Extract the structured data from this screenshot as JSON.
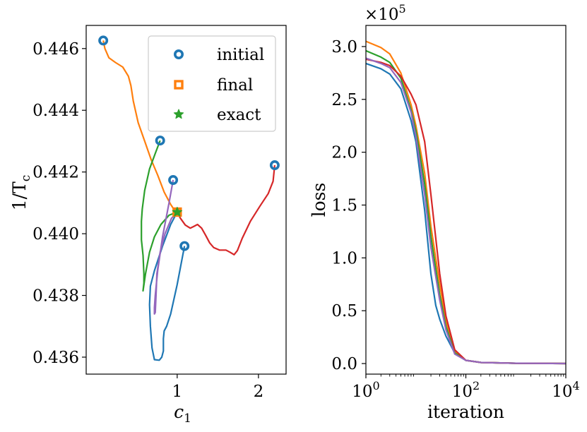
{
  "chart_data": [
    {
      "type": "line",
      "title": "",
      "xlabel": "c",
      "xlabel_sub": "1",
      "ylabel": "1/T",
      "ylabel_sub": "c",
      "xlim": [
        -0.12,
        2.34
      ],
      "ylim": [
        0.43545,
        0.44675
      ],
      "xticks": [
        1,
        2
      ],
      "xtick_labels": [
        "1",
        "2"
      ],
      "yticks": [
        0.436,
        0.438,
        0.44,
        0.442,
        0.444,
        0.446
      ],
      "ytick_labels": [
        "0.436",
        "0.438",
        "0.440",
        "0.442",
        "0.444",
        "0.446"
      ],
      "grid": false,
      "legend_position": "top-right",
      "legend": [
        {
          "label": "initial",
          "marker": "circle",
          "color": "#1f77b4"
        },
        {
          "label": "final",
          "marker": "square",
          "color": "#ff7f0e"
        },
        {
          "label": "exact",
          "marker": "star",
          "color": "#2ca02c"
        }
      ],
      "exact_point": {
        "x": 1.0,
        "y": 0.4407
      },
      "series": [
        {
          "color": "#1f77b4",
          "initial": {
            "x": 1.09,
            "y": 0.4396
          },
          "points": [
            [
              1.09,
              0.4396
            ],
            [
              1.0,
              0.43835
            ],
            [
              0.92,
              0.4374
            ],
            [
              0.87,
              0.437
            ],
            [
              0.84,
              0.43685
            ],
            [
              0.83,
              0.4366
            ],
            [
              0.83,
              0.4362
            ],
            [
              0.81,
              0.436
            ],
            [
              0.78,
              0.4359
            ],
            [
              0.72,
              0.43592
            ],
            [
              0.69,
              0.4363
            ],
            [
              0.67,
              0.437
            ],
            [
              0.66,
              0.4377
            ],
            [
              0.67,
              0.4383
            ],
            [
              0.72,
              0.4388
            ],
            [
              0.82,
              0.4396
            ],
            [
              0.92,
              0.4403
            ],
            [
              1.0,
              0.4407
            ]
          ]
        },
        {
          "color": "#ff7f0e",
          "initial": {
            "x": 0.09,
            "y": 0.44626
          },
          "points": [
            [
              0.09,
              0.44626
            ],
            [
              0.11,
              0.446
            ],
            [
              0.16,
              0.4457
            ],
            [
              0.24,
              0.44555
            ],
            [
              0.33,
              0.4454
            ],
            [
              0.4,
              0.4451
            ],
            [
              0.43,
              0.4448
            ],
            [
              0.46,
              0.4443
            ],
            [
              0.52,
              0.4436
            ],
            [
              0.6,
              0.443
            ],
            [
              0.68,
              0.4424
            ],
            [
              0.76,
              0.4419
            ],
            [
              0.84,
              0.44135
            ],
            [
              0.92,
              0.44095
            ],
            [
              0.97,
              0.44075
            ],
            [
              1.0,
              0.4407
            ]
          ]
        },
        {
          "color": "#2ca02c",
          "initial": {
            "x": 0.79,
            "y": 0.44302
          },
          "points": [
            [
              0.79,
              0.44302
            ],
            [
              0.73,
              0.4426
            ],
            [
              0.66,
              0.4421
            ],
            [
              0.6,
              0.4414
            ],
            [
              0.57,
              0.4408
            ],
            [
              0.56,
              0.4404
            ],
            [
              0.56,
              0.4398
            ],
            [
              0.58,
              0.4393
            ],
            [
              0.59,
              0.4387
            ],
            [
              0.59,
              0.4384
            ],
            [
              0.58,
              0.43815
            ],
            [
              0.61,
              0.4387
            ],
            [
              0.66,
              0.4394
            ],
            [
              0.72,
              0.4399
            ],
            [
              0.8,
              0.4403
            ],
            [
              0.9,
              0.4406
            ],
            [
              1.0,
              0.4407
            ]
          ]
        },
        {
          "color": "#d62728",
          "initial": {
            "x": 2.2,
            "y": 0.44222
          },
          "points": [
            [
              2.2,
              0.44222
            ],
            [
              2.18,
              0.4417
            ],
            [
              2.12,
              0.4413
            ],
            [
              2.02,
              0.4409
            ],
            [
              1.9,
              0.4404
            ],
            [
              1.8,
              0.43985
            ],
            [
              1.74,
              0.43945
            ],
            [
              1.7,
              0.43932
            ],
            [
              1.65,
              0.4394
            ],
            [
              1.6,
              0.43947
            ],
            [
              1.52,
              0.43947
            ],
            [
              1.45,
              0.43955
            ],
            [
              1.4,
              0.4397
            ],
            [
              1.35,
              0.43995
            ],
            [
              1.3,
              0.44018
            ],
            [
              1.25,
              0.4403
            ],
            [
              1.2,
              0.44023
            ],
            [
              1.16,
              0.44018
            ],
            [
              1.1,
              0.44028
            ],
            [
              1.04,
              0.4405
            ],
            [
              1.0,
              0.4407
            ]
          ]
        },
        {
          "color": "#9467bd",
          "initial": {
            "x": 0.95,
            "y": 0.44174
          },
          "points": [
            [
              0.95,
              0.44174
            ],
            [
              0.9,
              0.441
            ],
            [
              0.82,
              0.4399
            ],
            [
              0.76,
              0.4388
            ],
            [
              0.73,
              0.438
            ],
            [
              0.72,
              0.4376
            ],
            [
              0.72,
              0.4374
            ],
            [
              0.73,
              0.43745
            ],
            [
              0.74,
              0.438
            ],
            [
              0.75,
              0.4387
            ],
            [
              0.79,
              0.4394
            ],
            [
              0.85,
              0.44
            ],
            [
              0.93,
              0.4405
            ],
            [
              1.0,
              0.4407
            ]
          ]
        }
      ]
    },
    {
      "type": "line",
      "title": "",
      "xlabel": "iteration",
      "ylabel": "loss",
      "xscale": "log",
      "xlim": [
        1,
        10000
      ],
      "ylim": [
        -0.1,
        3.2
      ],
      "y_multiplier_base": "×10",
      "y_multiplier_exp": "5",
      "xticks": [
        1,
        100,
        10000
      ],
      "xtick_bases": [
        "10",
        "10",
        "10"
      ],
      "xtick_exps": [
        "0",
        "2",
        "4"
      ],
      "yticks": [
        0.0,
        0.5,
        1.0,
        1.5,
        2.0,
        2.5,
        3.0
      ],
      "ytick_labels": [
        "0.0",
        "0.5",
        "1.0",
        "1.5",
        "2.0",
        "2.5",
        "3.0"
      ],
      "grid": false,
      "series": [
        {
          "color": "#1f77b4",
          "points": [
            [
              1,
              2.84
            ],
            [
              2,
              2.79
            ],
            [
              3,
              2.74
            ],
            [
              5,
              2.6
            ],
            [
              8,
              2.3
            ],
            [
              10,
              2.1
            ],
            [
              15,
              1.45
            ],
            [
              20,
              0.85
            ],
            [
              25,
              0.55
            ],
            [
              30,
              0.42
            ],
            [
              40,
              0.26
            ],
            [
              60,
              0.1
            ],
            [
              100,
              0.03
            ],
            [
              200,
              0.01
            ],
            [
              1000,
              0.003
            ],
            [
              10000,
              0.0
            ]
          ]
        },
        {
          "color": "#ff7f0e",
          "points": [
            [
              1,
              3.05
            ],
            [
              2,
              2.99
            ],
            [
              3,
              2.93
            ],
            [
              5,
              2.75
            ],
            [
              8,
              2.45
            ],
            [
              10,
              2.25
            ],
            [
              15,
              1.8
            ],
            [
              20,
              1.3
            ],
            [
              30,
              0.75
            ],
            [
              40,
              0.4
            ],
            [
              60,
              0.12
            ],
            [
              100,
              0.03
            ],
            [
              200,
              0.01
            ],
            [
              1000,
              0.003
            ],
            [
              10000,
              0.0
            ]
          ]
        },
        {
          "color": "#2ca02c",
          "points": [
            [
              1,
              2.96
            ],
            [
              2,
              2.9
            ],
            [
              3,
              2.85
            ],
            [
              5,
              2.7
            ],
            [
              8,
              2.4
            ],
            [
              10,
              2.2
            ],
            [
              15,
              1.7
            ],
            [
              20,
              1.2
            ],
            [
              30,
              0.65
            ],
            [
              40,
              0.35
            ],
            [
              60,
              0.1
            ],
            [
              100,
              0.03
            ],
            [
              200,
              0.01
            ],
            [
              1000,
              0.003
            ],
            [
              10000,
              0.0
            ]
          ]
        },
        {
          "color": "#d62728",
          "points": [
            [
              1,
              2.88
            ],
            [
              2,
              2.85
            ],
            [
              3,
              2.82
            ],
            [
              5,
              2.72
            ],
            [
              8,
              2.55
            ],
            [
              10,
              2.45
            ],
            [
              15,
              2.1
            ],
            [
              20,
              1.6
            ],
            [
              30,
              0.85
            ],
            [
              40,
              0.45
            ],
            [
              60,
              0.13
            ],
            [
              100,
              0.03
            ],
            [
              200,
              0.01
            ],
            [
              1000,
              0.003
            ],
            [
              10000,
              0.0
            ]
          ]
        },
        {
          "color": "#9467bd",
          "points": [
            [
              1,
              2.89
            ],
            [
              2,
              2.84
            ],
            [
              3,
              2.8
            ],
            [
              5,
              2.66
            ],
            [
              8,
              2.38
            ],
            [
              10,
              2.15
            ],
            [
              15,
              1.6
            ],
            [
              20,
              1.1
            ],
            [
              30,
              0.6
            ],
            [
              40,
              0.32
            ],
            [
              60,
              0.09
            ],
            [
              100,
              0.03
            ],
            [
              200,
              0.01
            ],
            [
              1000,
              0.003
            ],
            [
              10000,
              0.0
            ]
          ]
        }
      ]
    }
  ]
}
